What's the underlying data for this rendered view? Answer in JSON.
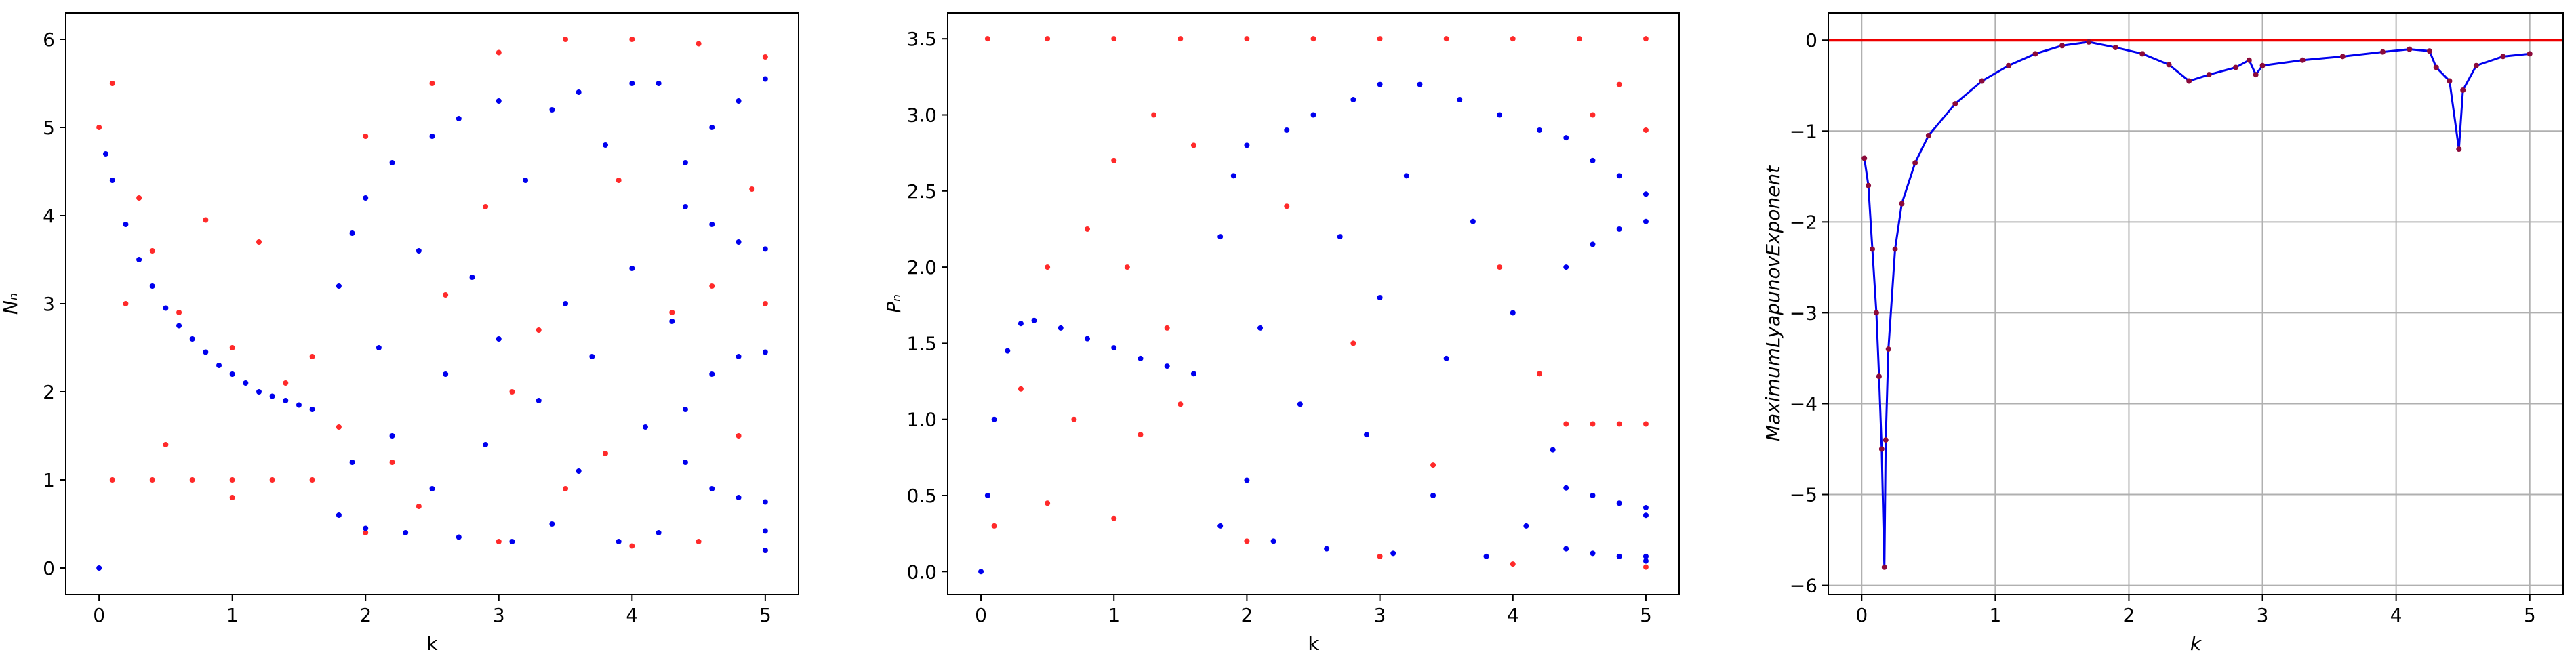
{
  "chart_data": [
    {
      "type": "scatter",
      "xlabel": "k",
      "ylabel": "Nₙ",
      "xlim": [
        -0.25,
        5.25
      ],
      "ylim": [
        -0.3,
        6.3
      ],
      "xticks": [
        0,
        1,
        2,
        3,
        4,
        5
      ],
      "yticks": [
        0,
        1,
        2,
        3,
        4,
        5,
        6
      ],
      "grid": false,
      "series": [
        {
          "color": "#ff2a2a",
          "x": [
            0.1,
            0.4,
            0.7,
            1.0,
            1.3,
            1.6,
            2.0,
            2.5,
            3.0,
            3.5,
            4.0,
            4.5,
            5.0,
            0.4,
            0.8,
            1.2,
            1.6,
            0.0,
            0.2,
            0.5,
            1.0,
            2.0,
            3.0,
            4.0,
            5.0,
            0.1,
            0.3,
            0.6,
            1.0,
            1.4,
            1.8,
            2.2,
            2.6,
            3.1,
            3.5,
            3.9,
            4.3,
            4.5,
            4.6,
            4.8,
            4.9,
            5.0,
            2.4,
            2.9,
            3.3,
            3.8
          ],
          "values": [
            1.0,
            1.0,
            1.0,
            1.0,
            1.0,
            1.0,
            4.9,
            5.5,
            5.85,
            6.0,
            6.0,
            5.95,
            5.8,
            3.6,
            3.95,
            3.7,
            2.4,
            5.0,
            3.0,
            1.4,
            0.8,
            0.4,
            0.3,
            0.25,
            0.2,
            5.5,
            4.2,
            2.9,
            2.5,
            2.1,
            1.6,
            1.2,
            3.1,
            2.0,
            0.9,
            4.4,
            2.9,
            0.3,
            3.2,
            1.5,
            4.3,
            3.0,
            0.7,
            4.1,
            2.7,
            1.3
          ]
        },
        {
          "color": "#0000ee",
          "x": [
            0.0,
            0.05,
            0.1,
            0.2,
            0.3,
            0.4,
            0.5,
            0.6,
            0.7,
            0.8,
            0.9,
            1.0,
            1.1,
            1.2,
            1.3,
            1.4,
            1.5,
            1.6,
            1.8,
            1.8,
            1.9,
            1.9,
            2.0,
            2.0,
            2.1,
            2.2,
            2.2,
            2.3,
            2.4,
            2.5,
            2.5,
            2.6,
            2.7,
            2.7,
            2.8,
            2.9,
            3.0,
            3.0,
            3.1,
            3.2,
            3.3,
            3.4,
            3.4,
            3.5,
            3.6,
            3.6,
            3.7,
            3.8,
            3.9,
            4.0,
            4.0,
            4.1,
            4.2,
            4.2,
            4.3,
            4.4,
            4.4,
            4.4,
            4.4,
            4.6,
            4.6,
            4.6,
            4.6,
            4.8,
            4.8,
            4.8,
            4.8,
            5.0,
            5.0,
            5.0,
            5.0,
            5.0,
            5.0
          ],
          "values": [
            0.0,
            4.7,
            4.4,
            3.9,
            3.5,
            3.2,
            2.95,
            2.75,
            2.6,
            2.45,
            2.3,
            2.2,
            2.1,
            2.0,
            1.95,
            1.9,
            1.85,
            1.8,
            3.2,
            0.6,
            3.8,
            1.2,
            4.2,
            0.45,
            2.5,
            4.6,
            1.5,
            0.4,
            3.6,
            4.9,
            0.9,
            2.2,
            5.1,
            0.35,
            3.3,
            1.4,
            5.3,
            2.6,
            0.3,
            4.4,
            1.9,
            5.2,
            0.5,
            3.0,
            5.4,
            1.1,
            2.4,
            4.8,
            0.3,
            5.5,
            3.4,
            1.6,
            5.5,
            0.4,
            2.8,
            4.6,
            4.1,
            1.8,
            1.2,
            5.0,
            3.9,
            2.2,
            0.9,
            5.3,
            3.7,
            2.4,
            0.8,
            5.55,
            3.62,
            2.45,
            0.75,
            0.42,
            0.2
          ]
        }
      ]
    },
    {
      "type": "scatter",
      "xlabel": "k",
      "ylabel": "Pₙ",
      "xlim": [
        -0.25,
        5.25
      ],
      "ylim": [
        -0.15,
        3.67
      ],
      "xticks": [
        0,
        1,
        2,
        3,
        4,
        5
      ],
      "yticks": [
        {
          "value": 0,
          "label": "0.0"
        },
        0.5,
        {
          "value": 1,
          "label": "1.0"
        },
        1.5,
        {
          "value": 2,
          "label": "2.0"
        },
        2.5,
        {
          "value": 3,
          "label": "3.0"
        },
        3.5
      ],
      "grid": false,
      "series": [
        {
          "color": "#ff2a2a",
          "x": [
            0.05,
            0.5,
            1.0,
            1.5,
            2.0,
            2.5,
            3.0,
            3.5,
            4.0,
            4.5,
            5.0,
            0.5,
            0.8,
            1.1,
            1.4,
            1.0,
            1.3,
            1.6,
            0.1,
            0.5,
            1.0,
            2.0,
            3.0,
            4.0,
            5.0,
            4.4,
            4.6,
            4.8,
            5.0,
            4.6,
            4.8,
            5.0,
            0.3,
            0.7,
            1.2,
            1.5,
            2.3,
            2.8,
            3.4,
            3.9,
            4.2
          ],
          "values": [
            3.5,
            3.5,
            3.5,
            3.5,
            3.5,
            3.5,
            3.5,
            3.5,
            3.5,
            3.5,
            3.5,
            2.0,
            2.25,
            2.0,
            1.6,
            2.7,
            3.0,
            2.8,
            0.3,
            0.45,
            0.35,
            0.2,
            0.1,
            0.05,
            0.03,
            0.97,
            0.97,
            0.97,
            0.97,
            3.0,
            3.2,
            2.9,
            1.2,
            1.0,
            0.9,
            1.1,
            2.4,
            1.5,
            0.7,
            2.0,
            1.3
          ]
        },
        {
          "color": "#0000ee",
          "x": [
            0.0,
            0.05,
            0.1,
            0.2,
            0.3,
            0.4,
            0.6,
            0.8,
            1.0,
            1.2,
            1.4,
            1.6,
            1.8,
            1.8,
            1.9,
            2.0,
            2.0,
            2.1,
            2.2,
            2.3,
            2.4,
            2.5,
            2.6,
            2.7,
            2.8,
            2.9,
            3.0,
            3.0,
            3.1,
            3.2,
            3.3,
            3.4,
            3.5,
            3.6,
            3.7,
            3.8,
            3.9,
            4.0,
            4.1,
            4.2,
            4.3,
            4.4,
            4.4,
            4.4,
            4.4,
            4.6,
            4.6,
            4.6,
            4.6,
            4.8,
            4.8,
            4.8,
            4.8,
            5.0,
            5.0,
            5.0,
            5.0,
            5.0,
            5.0
          ],
          "values": [
            0.0,
            0.5,
            1.0,
            1.45,
            1.63,
            1.65,
            1.6,
            1.53,
            1.47,
            1.4,
            1.35,
            1.3,
            2.2,
            0.3,
            2.6,
            0.6,
            2.8,
            1.6,
            0.2,
            2.9,
            1.1,
            3.0,
            0.15,
            2.2,
            3.1,
            0.9,
            3.2,
            1.8,
            0.12,
            2.6,
            3.2,
            0.5,
            1.4,
            3.1,
            2.3,
            0.1,
            3.0,
            1.7,
            0.3,
            2.9,
            0.8,
            2.85,
            2.0,
            0.55,
            0.15,
            2.7,
            2.15,
            0.5,
            0.12,
            2.6,
            2.25,
            0.45,
            0.1,
            2.48,
            2.3,
            0.42,
            0.37,
            0.1,
            0.07
          ]
        }
      ]
    },
    {
      "type": "line",
      "xlabel": "k",
      "ylabel": "MaximumLyapunovExponent",
      "xlim": [
        -0.25,
        5.25
      ],
      "ylim": [
        -6.1,
        0.3
      ],
      "xticks": [
        0,
        1,
        2,
        3,
        4,
        5
      ],
      "yticks": [
        0,
        {
          "value": -1,
          "label": "−1"
        },
        {
          "value": -2,
          "label": "−2"
        },
        {
          "value": -3,
          "label": "−3"
        },
        {
          "value": -4,
          "label": "−4"
        },
        {
          "value": -5,
          "label": "−5"
        },
        {
          "value": -6,
          "label": "−6"
        }
      ],
      "grid": true,
      "hline": 0,
      "hline_color": "#ee0000",
      "series": [
        {
          "color": "#0000ee",
          "marker_color": "#8b0a3a",
          "x": [
            0.02,
            0.05,
            0.08,
            0.11,
            0.13,
            0.15,
            0.17,
            0.18,
            0.2,
            0.25,
            0.3,
            0.4,
            0.5,
            0.7,
            0.9,
            1.1,
            1.3,
            1.5,
            1.7,
            1.9,
            2.1,
            2.3,
            2.45,
            2.6,
            2.8,
            2.9,
            2.95,
            3.0,
            3.3,
            3.6,
            3.9,
            4.1,
            4.25,
            4.3,
            4.4,
            4.47,
            4.5,
            4.6,
            4.8,
            5.0
          ],
          "values": [
            -1.3,
            -1.6,
            -2.3,
            -3.0,
            -3.7,
            -4.5,
            -5.8,
            -4.4,
            -3.4,
            -2.3,
            -1.8,
            -1.35,
            -1.05,
            -0.7,
            -0.45,
            -0.28,
            -0.15,
            -0.06,
            -0.02,
            -0.08,
            -0.15,
            -0.27,
            -0.45,
            -0.38,
            -0.3,
            -0.22,
            -0.38,
            -0.28,
            -0.22,
            -0.18,
            -0.13,
            -0.1,
            -0.12,
            -0.3,
            -0.45,
            -1.2,
            -0.55,
            -0.28,
            -0.18,
            -0.15
          ]
        }
      ]
    }
  ]
}
